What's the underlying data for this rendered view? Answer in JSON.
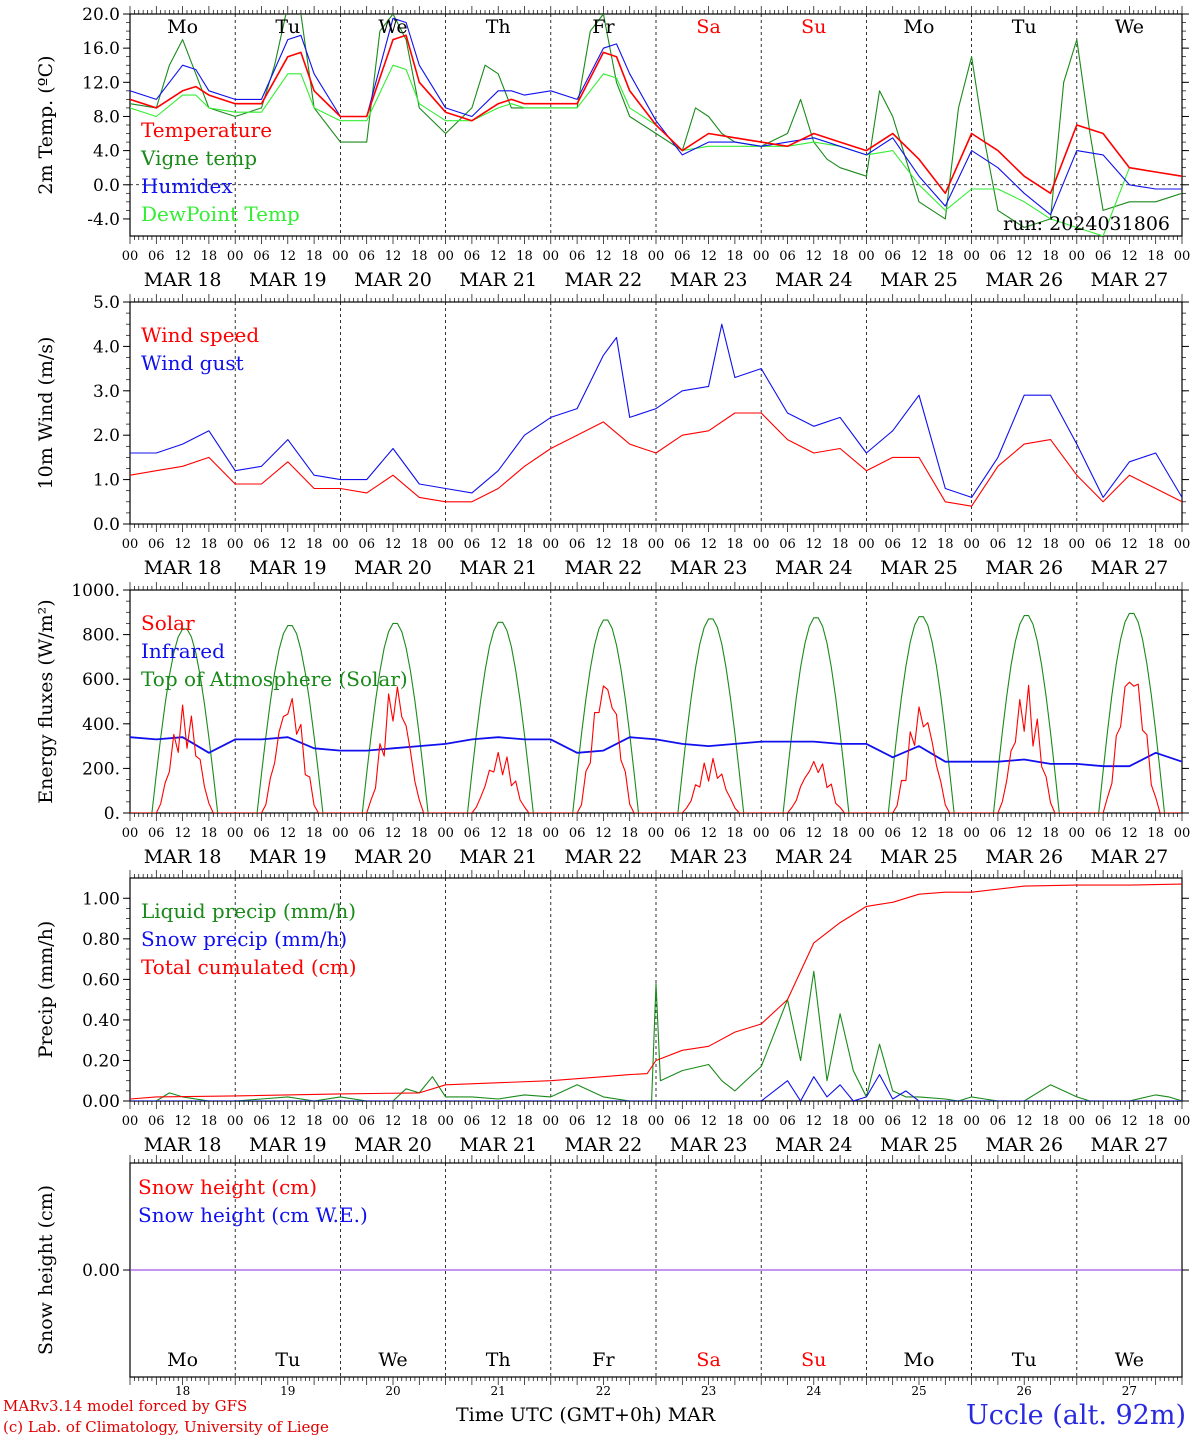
{
  "colors": {
    "red": "#ff0000",
    "green": "#1a8a1a",
    "blue": "#1010ee",
    "lightgreen": "#33ee33",
    "purple": "#8a2be2",
    "axis": "#000000"
  },
  "days": [
    "18",
    "19",
    "20",
    "21",
    "22",
    "23",
    "24",
    "25",
    "26",
    "27"
  ],
  "day_names": [
    "Mo",
    "Tu",
    "We",
    "Th",
    "Fr",
    "Sa",
    "Su",
    "Mo",
    "Tu",
    "We"
  ],
  "weekend_flags": [
    false,
    false,
    false,
    false,
    false,
    true,
    true,
    false,
    false,
    false
  ],
  "month_labels": [
    "MAR 18",
    "MAR 19",
    "MAR 20",
    "MAR 21",
    "MAR 22",
    "MAR 23",
    "MAR 24",
    "MAR 25",
    "MAR 26",
    "MAR 27"
  ],
  "hour_ticks": [
    "00",
    "06",
    "12",
    "18"
  ],
  "hour_end": "00",
  "run_label": "run: 2024031806",
  "time_axis_label": "Time UTC (GMT+0h) MAR",
  "footer": {
    "line1": "MARv3.14 model forced by GFS",
    "line2": "(c) Lab. of Climatology, University of Liege",
    "location": "Uccle (alt. 92m)"
  },
  "chart_data": [
    {
      "id": "temp",
      "type": "line",
      "ylabel": "2m Temp. (ºC)",
      "ylim": [
        -6,
        20
      ],
      "yticks": [
        -4,
        0,
        4,
        8,
        12,
        16,
        20
      ],
      "ytick_labels": [
        "-4.0",
        "0.0",
        "4.0",
        "8.0",
        "12.0",
        "16.0",
        "20.0"
      ],
      "zero_line": true,
      "x_unit": "hours since MAR 18 00 UTC",
      "series": [
        {
          "name": "Temperature",
          "color": "red",
          "x": [
            0,
            6,
            12,
            15,
            18,
            24,
            30,
            36,
            39,
            42,
            48,
            54,
            60,
            63,
            66,
            72,
            78,
            84,
            87,
            90,
            96,
            102,
            108,
            111,
            114,
            120,
            126,
            132,
            138,
            144,
            150,
            156,
            162,
            168,
            174,
            180,
            186,
            192,
            198,
            204,
            210,
            216,
            222,
            228,
            234,
            240
          ],
          "y": [
            10,
            9,
            11,
            11.5,
            10.5,
            9.5,
            9.5,
            15,
            15.5,
            11,
            8,
            8,
            17,
            17.5,
            12,
            8.5,
            7.5,
            9.5,
            10,
            9.5,
            9.5,
            9.5,
            15.5,
            15,
            11,
            7,
            4,
            6,
            5.5,
            5,
            4.5,
            6,
            5,
            4,
            6,
            3,
            -1,
            6,
            4,
            1,
            -1,
            7,
            6,
            2,
            1.5,
            1
          ]
        },
        {
          "name": "Vigne temp",
          "color": "green",
          "x": [
            0,
            6,
            9,
            12,
            15,
            18,
            24,
            30,
            33,
            36,
            39,
            42,
            48,
            54,
            57,
            60,
            63,
            66,
            72,
            78,
            81,
            84,
            87,
            90,
            96,
            102,
            105,
            108,
            111,
            114,
            120,
            126,
            129,
            132,
            135,
            138,
            144,
            150,
            153,
            156,
            159,
            162,
            168,
            171,
            174,
            177,
            180,
            186,
            189,
            192,
            195,
            198,
            204,
            210,
            213,
            216,
            219,
            222,
            228,
            234,
            240
          ],
          "y": [
            9.5,
            9,
            14,
            17,
            13,
            9,
            8,
            9,
            14,
            21,
            20,
            9,
            5,
            5,
            18,
            20,
            17,
            9,
            6,
            9,
            14,
            13,
            9,
            9,
            9,
            9,
            18,
            20,
            12,
            8,
            6,
            4,
            9,
            8,
            6,
            5,
            4.5,
            6,
            10,
            5,
            3,
            2,
            1,
            11,
            8,
            3,
            -2,
            -4,
            9,
            15,
            5,
            -3,
            -5,
            -4,
            12,
            17,
            6,
            -3,
            -2,
            -2,
            -1
          ]
        },
        {
          "name": "Humidex",
          "color": "blue",
          "x": [
            0,
            6,
            12,
            15,
            18,
            24,
            30,
            36,
            39,
            42,
            48,
            54,
            60,
            63,
            66,
            72,
            78,
            84,
            87,
            90,
            96,
            102,
            108,
            111,
            114,
            120,
            126,
            132,
            138,
            144,
            150,
            156,
            162,
            168,
            174,
            180,
            186,
            192,
            198,
            204,
            210,
            216,
            222,
            228,
            234,
            240
          ],
          "y": [
            11,
            10,
            14,
            13.5,
            11,
            10,
            10,
            17,
            17.5,
            13,
            8,
            8,
            19.5,
            19,
            14,
            9,
            8,
            11,
            11,
            10.5,
            11,
            10,
            16,
            16.5,
            13,
            7.5,
            3.5,
            5,
            5,
            4.5,
            5,
            5.5,
            4.5,
            3.5,
            5.5,
            1,
            -2.5,
            4,
            2,
            -1,
            -3.5,
            4,
            3.5,
            0,
            -0.5,
            -0.5
          ]
        },
        {
          "name": "DewPoint Temp",
          "color": "lightgreen",
          "x": [
            0,
            6,
            12,
            15,
            18,
            24,
            30,
            36,
            39,
            42,
            48,
            54,
            60,
            63,
            66,
            72,
            78,
            84,
            87,
            90,
            96,
            102,
            108,
            111,
            114,
            120,
            126,
            132,
            138,
            144,
            150,
            156,
            162,
            168,
            174,
            180,
            186,
            192,
            198,
            204,
            210,
            216,
            222,
            228,
            234,
            240
          ],
          "y": [
            9,
            8,
            10.5,
            10.5,
            9,
            8.5,
            8.5,
            13,
            13,
            9,
            7.5,
            7.5,
            14,
            13.5,
            9.5,
            7.5,
            7.5,
            9,
            9.5,
            9,
            9,
            9,
            13,
            12.5,
            9,
            7,
            4,
            4.5,
            4.5,
            4.5,
            4.5,
            5,
            4.5,
            3.5,
            4,
            0,
            -3,
            -0.5,
            -0.5,
            -2,
            -4,
            -5,
            -6,
            2,
            1.5,
            1
          ]
        }
      ]
    },
    {
      "id": "wind",
      "type": "line",
      "ylabel": "10m Wind (m/s)",
      "ylim": [
        0,
        5
      ],
      "yticks": [
        0,
        1,
        2,
        3,
        4,
        5
      ],
      "ytick_labels": [
        "0.0",
        "1.0",
        "2.0",
        "3.0",
        "4.0",
        "5.0"
      ],
      "x_unit": "hours since MAR 18 00 UTC",
      "series": [
        {
          "name": "Wind speed",
          "color": "red",
          "x": [
            0,
            6,
            12,
            18,
            24,
            30,
            36,
            42,
            48,
            54,
            60,
            66,
            72,
            78,
            84,
            90,
            96,
            102,
            108,
            114,
            120,
            126,
            132,
            138,
            144,
            150,
            156,
            162,
            168,
            174,
            180,
            186,
            192,
            198,
            204,
            210,
            216,
            222,
            228,
            234,
            240
          ],
          "y": [
            1.1,
            1.2,
            1.3,
            1.5,
            0.9,
            0.9,
            1.4,
            0.8,
            0.8,
            0.7,
            1.1,
            0.6,
            0.5,
            0.5,
            0.8,
            1.3,
            1.7,
            2.0,
            2.3,
            1.8,
            1.6,
            2.0,
            2.1,
            2.5,
            2.5,
            1.9,
            1.6,
            1.7,
            1.2,
            1.5,
            1.5,
            0.5,
            0.4,
            1.3,
            1.8,
            1.9,
            1.1,
            0.5,
            1.1,
            0.8,
            0.5
          ]
        },
        {
          "name": "Wind gust",
          "color": "blue",
          "x": [
            0,
            6,
            12,
            18,
            24,
            30,
            36,
            42,
            48,
            54,
            60,
            66,
            72,
            78,
            84,
            90,
            96,
            102,
            108,
            111,
            114,
            120,
            126,
            132,
            135,
            138,
            144,
            150,
            156,
            162,
            168,
            174,
            180,
            186,
            192,
            198,
            204,
            210,
            216,
            222,
            228,
            234,
            240
          ],
          "y": [
            1.6,
            1.6,
            1.8,
            2.1,
            1.2,
            1.3,
            1.9,
            1.1,
            1.0,
            1.0,
            1.7,
            0.9,
            0.8,
            0.7,
            1.2,
            2.0,
            2.4,
            2.6,
            3.8,
            4.2,
            2.4,
            2.6,
            3.0,
            3.1,
            4.5,
            3.3,
            3.5,
            2.5,
            2.2,
            2.4,
            1.6,
            2.1,
            2.9,
            0.8,
            0.6,
            1.5,
            2.9,
            2.9,
            1.8,
            0.6,
            1.4,
            1.6,
            0.6
          ]
        }
      ]
    },
    {
      "id": "energy",
      "type": "line",
      "ylabel": "Energy fluxes (W/m²)",
      "ylim": [
        0,
        1000
      ],
      "yticks": [
        0,
        200,
        400,
        600,
        800,
        1000
      ],
      "ytick_labels": [
        "0.",
        "200.",
        "400.",
        "600.",
        "800.",
        "1000."
      ],
      "x_unit": "hours since MAR 18 00 UTC",
      "series": [
        {
          "name": "Solar",
          "color": "red",
          "peaks": [
            490,
            550,
            600,
            280,
            640,
            250,
            250,
            500,
            580,
            690
          ]
        },
        {
          "name": "Infrared",
          "color": "blue",
          "x": [
            0,
            6,
            12,
            18,
            24,
            30,
            36,
            42,
            48,
            54,
            60,
            66,
            72,
            78,
            84,
            90,
            96,
            102,
            108,
            114,
            120,
            126,
            132,
            138,
            144,
            150,
            156,
            162,
            168,
            174,
            180,
            186,
            192,
            198,
            204,
            210,
            216,
            222,
            228,
            234,
            240
          ],
          "y": [
            340,
            330,
            340,
            270,
            330,
            330,
            340,
            290,
            280,
            280,
            290,
            300,
            310,
            330,
            340,
            330,
            330,
            270,
            280,
            340,
            330,
            310,
            300,
            310,
            320,
            320,
            320,
            310,
            310,
            250,
            300,
            230,
            230,
            230,
            240,
            220,
            220,
            210,
            210,
            270,
            230
          ]
        },
        {
          "name": "Top of Atmosphere (Solar)",
          "color": "green",
          "peaks": [
            830,
            845,
            855,
            860,
            870,
            875,
            880,
            885,
            890,
            900
          ]
        }
      ]
    },
    {
      "id": "precip",
      "type": "line",
      "ylabel": "Precip (mm/h)",
      "ylim": [
        0,
        1.1
      ],
      "yticks": [
        0,
        0.2,
        0.4,
        0.6,
        0.8,
        1.0
      ],
      "ytick_labels": [
        "0.00",
        "0.20",
        "0.40",
        "0.60",
        "0.80",
        "1.00"
      ],
      "x_unit": "hours since MAR 18 00 UTC",
      "series": [
        {
          "name": "Liquid precip (mm/h)",
          "color": "green",
          "x": [
            0,
            6,
            9,
            12,
            18,
            24,
            30,
            36,
            42,
            48,
            54,
            60,
            63,
            66,
            69,
            72,
            78,
            84,
            90,
            96,
            102,
            108,
            114,
            119,
            120,
            121,
            126,
            132,
            135,
            138,
            144,
            150,
            153,
            156,
            159,
            162,
            165,
            168,
            171,
            174,
            177,
            180,
            186,
            189,
            192,
            195,
            198,
            204,
            210,
            216,
            219,
            222,
            228,
            234,
            237,
            240
          ],
          "y": [
            0,
            0,
            0.04,
            0.02,
            0,
            0,
            0.01,
            0.02,
            0,
            0.02,
            0,
            0,
            0.06,
            0.04,
            0.12,
            0.02,
            0.02,
            0.01,
            0.03,
            0.02,
            0.08,
            0.02,
            0,
            0,
            0.58,
            0.1,
            0.15,
            0.18,
            0.1,
            0.05,
            0.17,
            0.5,
            0.2,
            0.64,
            0.1,
            0.43,
            0.15,
            0.02,
            0.28,
            0.05,
            0.02,
            0.02,
            0.01,
            0,
            0.02,
            0.01,
            0,
            0,
            0.08,
            0.02,
            0,
            0,
            0,
            0.03,
            0.02,
            0
          ]
        },
        {
          "name": "Snow precip (mm/h)",
          "color": "blue",
          "x": [
            0,
            144,
            150,
            153,
            156,
            159,
            162,
            165,
            168,
            171,
            174,
            177,
            180,
            240
          ],
          "y": [
            0,
            0,
            0.1,
            0,
            0.12,
            0.02,
            0.08,
            0,
            0.02,
            0.13,
            0.01,
            0.05,
            0,
            0
          ]
        },
        {
          "name": "Total cumulated (cm)",
          "color": "red",
          "x": [
            0,
            6,
            24,
            48,
            66,
            72,
            96,
            108,
            114,
            118,
            120,
            126,
            132,
            138,
            144,
            150,
            156,
            162,
            168,
            174,
            180,
            186,
            192,
            204,
            216,
            228,
            240
          ],
          "y": [
            0.01,
            0.02,
            0.025,
            0.035,
            0.04,
            0.08,
            0.1,
            0.12,
            0.13,
            0.135,
            0.2,
            0.25,
            0.27,
            0.34,
            0.38,
            0.5,
            0.78,
            0.88,
            0.96,
            0.98,
            1.02,
            1.03,
            1.03,
            1.06,
            1.065,
            1.065,
            1.07
          ]
        }
      ]
    },
    {
      "id": "snow",
      "type": "line",
      "ylabel": "Snow height (cm)",
      "ylim": [
        -1,
        1
      ],
      "yticks": [
        0
      ],
      "ytick_labels": [
        "0.00"
      ],
      "x_unit": "hours since MAR 18 00 UTC",
      "series": [
        {
          "name": "Snow height (cm)",
          "color": "red",
          "x": [
            0,
            240
          ],
          "y": [
            0,
            0
          ]
        },
        {
          "name": "Snow height (cm W.E.)",
          "color": "blue",
          "x": [
            0,
            240
          ],
          "y": [
            0,
            0
          ]
        }
      ]
    }
  ]
}
